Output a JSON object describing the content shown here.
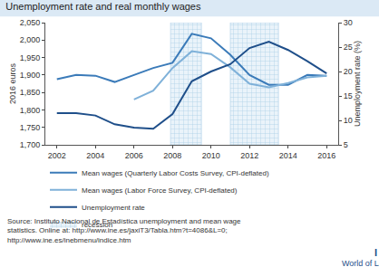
{
  "chart_data": {
    "type": "line",
    "title": "Unemployment rate and real monthly wages",
    "x": [
      2002,
      2003,
      2004,
      2005,
      2006,
      2007,
      2008,
      2009,
      2010,
      2011,
      2012,
      2013,
      2014,
      2015,
      2016
    ],
    "series": [
      {
        "name": "Mean wages (Quarterly Labor Costs Survey, CPI-deflated)",
        "color": "#3b7bb9",
        "axis": "y",
        "values": [
          1888,
          1900,
          1898,
          1880,
          1900,
          1920,
          1935,
          2018,
          2005,
          1958,
          1900,
          1872,
          1872,
          1900,
          1898
        ]
      },
      {
        "name": "Mean wages (Labor Force Survey, CPI-deflated)",
        "color": "#7fb1d9",
        "axis": "y",
        "values": [
          null,
          null,
          null,
          null,
          1830,
          1855,
          1920,
          1968,
          1960,
          1922,
          1875,
          1865,
          1877,
          1893,
          1898
        ]
      },
      {
        "name": "Unemployment rate",
        "color": "#1f4f8a",
        "axis": "y2",
        "values": [
          11.5,
          11.5,
          11.0,
          9.2,
          8.5,
          8.3,
          11.3,
          18.0,
          20.0,
          21.5,
          24.8,
          26.1,
          24.4,
          22.1,
          19.6
        ]
      }
    ],
    "xlim": [
      2001.4,
      2016.6
    ],
    "xticks": [
      2002,
      2004,
      2006,
      2008,
      2010,
      2012,
      2014,
      2016
    ],
    "ylim": [
      1700,
      2050
    ],
    "yticks": [
      {
        "value": 1700,
        "label": "1,700"
      },
      {
        "value": 1750,
        "label": "1,750"
      },
      {
        "value": 1800,
        "label": "1,800"
      },
      {
        "value": 1850,
        "label": "1,850"
      },
      {
        "value": 1900,
        "label": "1,900"
      },
      {
        "value": 1950,
        "label": "1,950"
      },
      {
        "value": 2000,
        "label": "2,000"
      },
      {
        "value": 2050,
        "label": "2,050"
      }
    ],
    "y2lim": [
      5,
      30
    ],
    "y2ticks": [
      5,
      10,
      15,
      20,
      25,
      30
    ],
    "ylabel": "2016 euros",
    "y2label": "Unemployment rate (%)",
    "recessions": {
      "name": "recession",
      "color": "#a9cde6",
      "periods": [
        {
          "start": 2007.9,
          "end": 2009.5
        },
        {
          "start": 2011,
          "end": 2013.5
        }
      ]
    },
    "legend": "bottom",
    "grid": false,
    "source": [
      "Source: Instituto Nacional de Estadística unemployment and mean wage",
      "statistics. Online at: http://www.ine.es/jaxiT3/Tabla.htm?t=4086&L=0;",
      "http://www.ine.es/inebmenu/indice.htm"
    ],
    "logo": [
      "I Z A",
      "World of Labor"
    ]
  }
}
